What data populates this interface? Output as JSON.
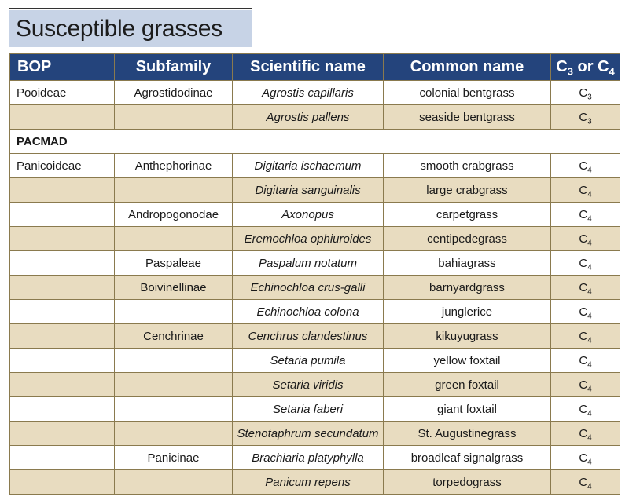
{
  "title": "Susceptible grasses",
  "headers": {
    "bop": "BOP",
    "subfamily": "Subfamily",
    "scientific": "Scientific name",
    "common": "Common name",
    "pathway": {
      "c": "C",
      "s1": "3",
      "or": " or ",
      "s2": "4"
    }
  },
  "rows": [
    {
      "bop": "Pooideae",
      "subfamily": "Agrostidodinae",
      "scientific": "Agrostis capillaris",
      "common": "colonial bentgrass",
      "pathway": {
        "base": "C",
        "sub": "3"
      }
    },
    {
      "bop": "",
      "subfamily": "",
      "scientific": "Agrostis pallens",
      "common": "seaside bentgrass",
      "pathway": {
        "base": "C",
        "sub": "3"
      }
    },
    {
      "group": "PACMAD"
    },
    {
      "bop": "Panicoideae",
      "subfamily": "Anthephorinae",
      "scientific": "Digitaria ischaemum",
      "common": "smooth crabgrass",
      "pathway": {
        "base": "C",
        "sub": "4"
      }
    },
    {
      "bop": "",
      "subfamily": "",
      "scientific": "Digitaria sanguinalis",
      "common": "large crabgrass",
      "pathway": {
        "base": "C",
        "sub": "4"
      }
    },
    {
      "bop": "",
      "subfamily": "Andropogonodae",
      "scientific": "Axonopus",
      "common": "carpetgrass",
      "pathway": {
        "base": "C",
        "sub": "4"
      }
    },
    {
      "bop": "",
      "subfamily": "",
      "scientific": "Eremochloa ophiuroides",
      "common": "centipedegrass",
      "pathway": {
        "base": "C",
        "sub": "4"
      }
    },
    {
      "bop": "",
      "subfamily": "Paspaleae",
      "scientific": "Paspalum notatum",
      "common": "bahiagrass",
      "pathway": {
        "base": "C",
        "sub": "4"
      }
    },
    {
      "bop": "",
      "subfamily": "Boivinellinae",
      "scientific": "Echinochloa crus-galli",
      "common": "barnyardgrass",
      "pathway": {
        "base": "C",
        "sub": "4"
      }
    },
    {
      "bop": "",
      "subfamily": "",
      "scientific": "Echinochloa colona",
      "common": "junglerice",
      "pathway": {
        "base": "C",
        "sub": "4"
      }
    },
    {
      "bop": "",
      "subfamily": "Cenchrinae",
      "scientific": "Cenchrus clandestinus",
      "common": "kikuyugrass",
      "pathway": {
        "base": "C",
        "sub": "4"
      }
    },
    {
      "bop": "",
      "subfamily": "",
      "scientific": "Setaria pumila",
      "common": "yellow foxtail",
      "pathway": {
        "base": "C",
        "sub": "4"
      }
    },
    {
      "bop": "",
      "subfamily": "",
      "scientific": "Setaria viridis",
      "common": "green foxtail",
      "pathway": {
        "base": "C",
        "sub": "4"
      }
    },
    {
      "bop": "",
      "subfamily": "",
      "scientific": "Setaria faberi",
      "common": "giant foxtail",
      "pathway": {
        "base": "C",
        "sub": "4"
      }
    },
    {
      "bop": "",
      "subfamily": "",
      "scientific": "Stenotaphrum secundatum",
      "common": "St. Augustinegrass",
      "pathway": {
        "base": "C",
        "sub": "4"
      }
    },
    {
      "bop": "",
      "subfamily": "Panicinae",
      "scientific": "Brachiaria platyphylla",
      "common": "broadleaf signalgrass",
      "pathway": {
        "base": "C",
        "sub": "4"
      }
    },
    {
      "bop": "",
      "subfamily": "",
      "scientific": "Panicum repens",
      "common": "torpedograss",
      "pathway": {
        "base": "C",
        "sub": "4"
      }
    }
  ],
  "colors": {
    "header_bg": "#24447c",
    "title_bg": "#c7d3e6",
    "row_shade": "#e8dcc0",
    "row_plain": "#ffffff",
    "border": "#8a7a4e"
  }
}
